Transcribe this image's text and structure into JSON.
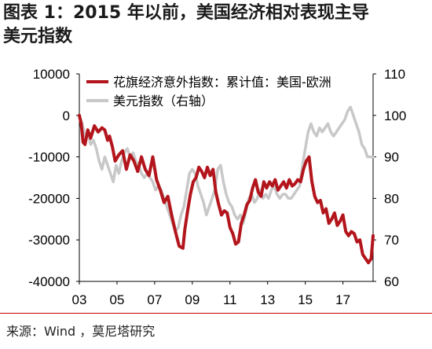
{
  "title_line1": "图表 1：2015 年以前，美国经济相对表现主导",
  "title_line2": "美元指数",
  "source": "来源：Wind ，莫尼塔研究",
  "colors": {
    "series1": "#b3151c",
    "series2": "#c8c8c8",
    "source_line": "#c00000"
  },
  "chart_data": {
    "type": "line",
    "x_tick_labels": [
      "03",
      "05",
      "07",
      "09",
      "11",
      "13",
      "15",
      "17"
    ],
    "x_ticks_year": [
      2003,
      2005,
      2007,
      2009,
      2011,
      2013,
      2015,
      2017
    ],
    "xlim": [
      2003.0,
      2018.6
    ],
    "y_left": {
      "lim": [
        -40000,
        10000
      ],
      "ticks": [
        10000,
        0,
        -10000,
        -20000,
        -30000,
        -40000
      ],
      "tick_labels": [
        "10000",
        "0",
        "-10000",
        "-20000",
        "-30000",
        "-40000"
      ]
    },
    "y_right": {
      "lim": [
        60,
        110
      ],
      "ticks": [
        110,
        100,
        90,
        80,
        70,
        60
      ],
      "tick_labels": [
        "110",
        "100",
        "90",
        "80",
        "70",
        "60"
      ]
    },
    "legend": [
      {
        "name": "花旗经济意外指数：累计值：美国-欧洲",
        "color": "#b3151c"
      },
      {
        "name": "美元指数（右轴）",
        "color": "#c8c8c8"
      }
    ],
    "series": [
      {
        "name": "花旗经济意外指数：累计值：美国-欧洲",
        "axis": "left",
        "x": [
          2003.0,
          2003.1,
          2003.2,
          2003.3,
          2003.45,
          2003.6,
          2003.8,
          2004.0,
          2004.2,
          2004.35,
          2004.5,
          2004.6,
          2004.75,
          2004.9,
          2005.1,
          2005.3,
          2005.5,
          2005.7,
          2005.9,
          2006.1,
          2006.3,
          2006.5,
          2006.7,
          2006.9,
          2007.1,
          2007.3,
          2007.5,
          2007.7,
          2007.9,
          2008.1,
          2008.3,
          2008.5,
          2008.6,
          2008.75,
          2008.9,
          2009.05,
          2009.2,
          2009.35,
          2009.5,
          2009.65,
          2009.8,
          2009.95,
          2010.1,
          2010.25,
          2010.4,
          2010.55,
          2010.7,
          2010.85,
          2011.0,
          2011.15,
          2011.3,
          2011.45,
          2011.6,
          2011.75,
          2011.9,
          2012.05,
          2012.2,
          2012.35,
          2012.5,
          2012.65,
          2012.8,
          2012.95,
          2013.1,
          2013.25,
          2013.4,
          2013.55,
          2013.7,
          2013.85,
          2014.0,
          2014.15,
          2014.3,
          2014.45,
          2014.6,
          2014.75,
          2014.9,
          2015.05,
          2015.2,
          2015.35,
          2015.5,
          2015.65,
          2015.8,
          2015.95,
          2016.1,
          2016.25,
          2016.4,
          2016.55,
          2016.7,
          2016.85,
          2017.0,
          2017.15,
          2017.3,
          2017.45,
          2017.6,
          2017.75,
          2017.9,
          2018.05,
          2018.2,
          2018.35,
          2018.5,
          2018.6
        ],
        "y": [
          0,
          -2000,
          -6500,
          -7000,
          -3500,
          -5500,
          -2500,
          -4000,
          -3000,
          -3500,
          -6000,
          -5000,
          -7500,
          -11000,
          -9500,
          -8500,
          -13000,
          -9500,
          -11000,
          -13500,
          -10000,
          -13000,
          -14500,
          -10000,
          -15500,
          -18000,
          -21000,
          -19500,
          -24000,
          -28000,
          -31500,
          -32000,
          -27500,
          -23000,
          -19000,
          -16000,
          -15000,
          -12500,
          -13500,
          -15000,
          -12500,
          -14500,
          -13000,
          -18500,
          -21500,
          -24000,
          -23000,
          -23500,
          -27000,
          -28500,
          -31000,
          -30500,
          -26000,
          -24000,
          -21500,
          -20500,
          -17500,
          -15500,
          -18500,
          -19500,
          -16000,
          -17500,
          -16000,
          -17000,
          -15500,
          -18000,
          -17000,
          -16000,
          -17500,
          -15500,
          -17000,
          -16500,
          -15500,
          -16000,
          -13000,
          -11000,
          -10000,
          -16000,
          -19500,
          -21000,
          -20500,
          -23500,
          -22500,
          -26000,
          -25000,
          -23500,
          -26500,
          -25500,
          -24000,
          -28000,
          -29000,
          -28000,
          -28500,
          -30500,
          -30000,
          -33500,
          -34500,
          -35500,
          -34500,
          -29000
        ]
      },
      {
        "name": "美元指数（右轴）",
        "axis": "right",
        "x": [
          2003.0,
          2003.15,
          2003.3,
          2003.45,
          2003.6,
          2003.75,
          2003.9,
          2004.05,
          2004.2,
          2004.35,
          2004.5,
          2004.65,
          2004.8,
          2004.95,
          2005.1,
          2005.25,
          2005.4,
          2005.55,
          2005.7,
          2005.85,
          2006.0,
          2006.15,
          2006.3,
          2006.45,
          2006.6,
          2006.75,
          2006.9,
          2007.05,
          2007.2,
          2007.35,
          2007.5,
          2007.65,
          2007.8,
          2007.95,
          2008.1,
          2008.25,
          2008.4,
          2008.55,
          2008.7,
          2008.85,
          2009.0,
          2009.15,
          2009.3,
          2009.45,
          2009.6,
          2009.75,
          2009.9,
          2010.05,
          2010.2,
          2010.35,
          2010.5,
          2010.65,
          2010.8,
          2010.95,
          2011.1,
          2011.25,
          2011.4,
          2011.55,
          2011.7,
          2011.85,
          2012.0,
          2012.15,
          2012.3,
          2012.45,
          2012.6,
          2012.75,
          2012.9,
          2013.05,
          2013.2,
          2013.35,
          2013.5,
          2013.65,
          2013.8,
          2013.95,
          2014.1,
          2014.25,
          2014.4,
          2014.55,
          2014.7,
          2014.85,
          2015.0,
          2015.15,
          2015.3,
          2015.45,
          2015.6,
          2015.75,
          2015.9,
          2016.05,
          2016.2,
          2016.35,
          2016.5,
          2016.65,
          2016.8,
          2016.95,
          2017.1,
          2017.25,
          2017.4,
          2017.55,
          2017.7,
          2017.85,
          2018.0,
          2018.15,
          2018.3,
          2018.45,
          2018.6
        ],
        "y": [
          100,
          98,
          95,
          96,
          93,
          94,
          92,
          89,
          87,
          90,
          88,
          86,
          84,
          88,
          86,
          89,
          91,
          92,
          90,
          91,
          89,
          88,
          86,
          85,
          86,
          85,
          84,
          82,
          83,
          82,
          80,
          78,
          76,
          74,
          72,
          73,
          76,
          78,
          82,
          86,
          87,
          86,
          83,
          81,
          79,
          76,
          78,
          80,
          82,
          87,
          88,
          84,
          81,
          79,
          78,
          76,
          75,
          76,
          74,
          77,
          80,
          81,
          79,
          80,
          82,
          80,
          81,
          80,
          82,
          83,
          81,
          80,
          81,
          81,
          80,
          80,
          81,
          82,
          83,
          88,
          92,
          96,
          98,
          96,
          95,
          97,
          96,
          97,
          98,
          96,
          95,
          96,
          97,
          98,
          99,
          101,
          102,
          100,
          98,
          96,
          93,
          92,
          90,
          90,
          90
        ]
      }
    ]
  }
}
